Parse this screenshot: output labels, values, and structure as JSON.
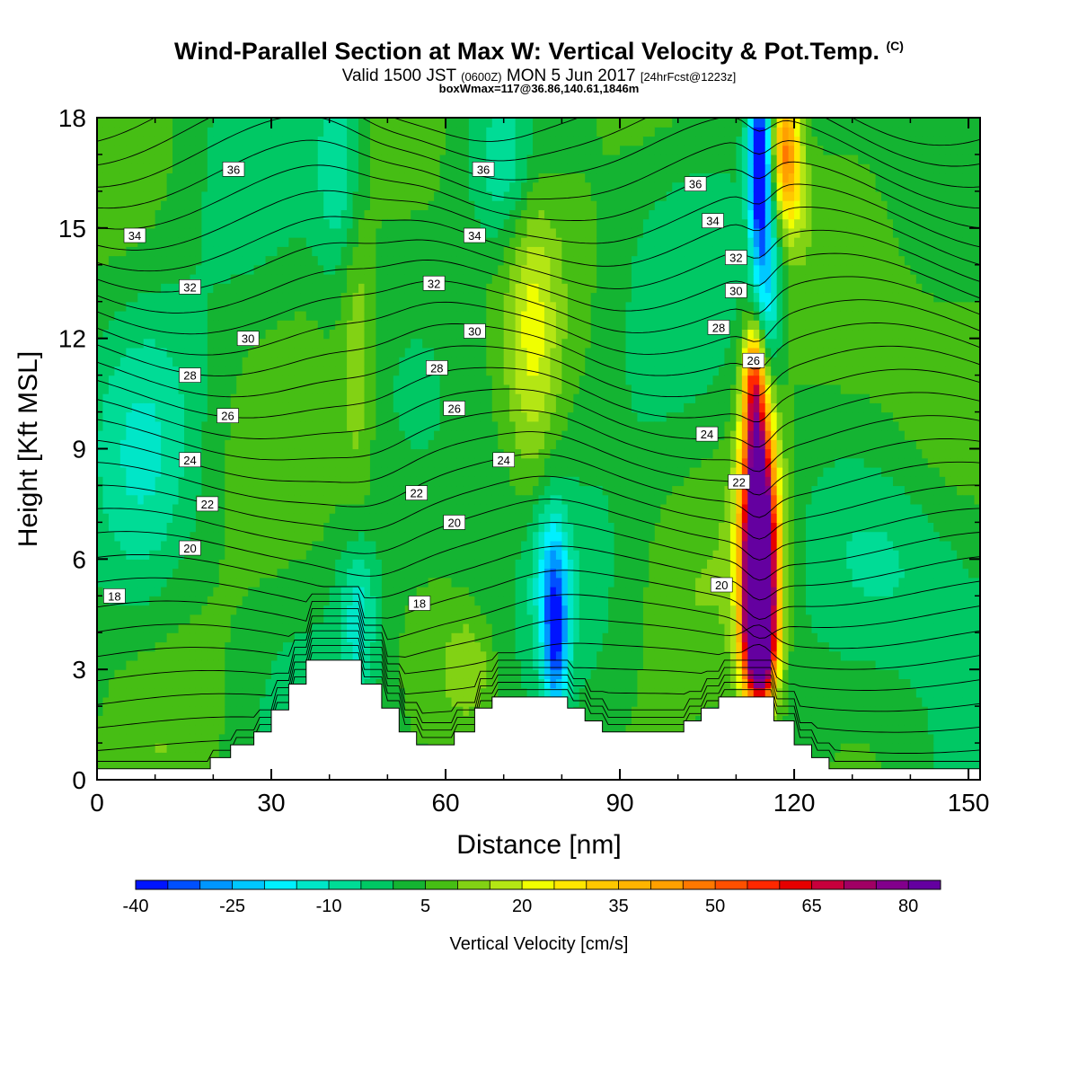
{
  "title": "Wind-Parallel Section at Max W: Vertical Velocity & Pot.Temp.",
  "title_mark": "(C)",
  "subtitle_pre": "Valid 1500 JST",
  "subtitle_utc": "(0600Z)",
  "subtitle_post": "MON 5 Jun 2017",
  "subtitle_fcst": "[24hrFcst@1223z]",
  "subtitle2": "boxWmax=117@36.86,140.61,1846m",
  "chart_data": {
    "type": "heatmap",
    "xlabel": "Distance [nm]",
    "ylabel": "Height [Kft MSL]",
    "xlim": [
      0,
      152
    ],
    "ylim": [
      0,
      18
    ],
    "x_ticks": [
      0,
      30,
      60,
      90,
      120,
      150
    ],
    "y_ticks": [
      0,
      3,
      6,
      9,
      12,
      15,
      18
    ],
    "colorbar": {
      "label": "Vertical Velocity [cm/s]",
      "levels": [
        -40,
        -35,
        -30,
        -25,
        -20,
        -15,
        -10,
        -5,
        0,
        5,
        10,
        15,
        20,
        25,
        30,
        35,
        40,
        45,
        50,
        55,
        60,
        65,
        70,
        75,
        80,
        85
      ],
      "tick_labels": [
        -40,
        -25,
        -10,
        5,
        20,
        35,
        50,
        65,
        80
      ],
      "colors": [
        "#0014ff",
        "#0050ff",
        "#0096ff",
        "#00c8ff",
        "#00f0ff",
        "#00e6c8",
        "#00dc96",
        "#00c864",
        "#14b432",
        "#46be14",
        "#82d214",
        "#b4e614",
        "#f0ff00",
        "#ffe600",
        "#ffc800",
        "#ffb400",
        "#ffa000",
        "#ff7800",
        "#ff5000",
        "#ff2800",
        "#e60000",
        "#c8003c",
        "#a00064",
        "#82008c",
        "#6400a0"
      ]
    },
    "terrain": [
      [
        0,
        0.3
      ],
      [
        19.5,
        0.3
      ],
      [
        19.5,
        0.6
      ],
      [
        23,
        0.6
      ],
      [
        23,
        0.95
      ],
      [
        27,
        0.95
      ],
      [
        27,
        1.3
      ],
      [
        30,
        1.3
      ],
      [
        30,
        1.9
      ],
      [
        33,
        1.9
      ],
      [
        33,
        2.6
      ],
      [
        36,
        2.6
      ],
      [
        36,
        3.25
      ],
      [
        45.5,
        3.25
      ],
      [
        45.5,
        2.6
      ],
      [
        49,
        2.6
      ],
      [
        49,
        1.95
      ],
      [
        52,
        1.95
      ],
      [
        52,
        1.3
      ],
      [
        55,
        1.3
      ],
      [
        55,
        0.95
      ],
      [
        61.5,
        0.95
      ],
      [
        61.5,
        1.3
      ],
      [
        65,
        1.3
      ],
      [
        65,
        1.95
      ],
      [
        68,
        1.95
      ],
      [
        68,
        2.25
      ],
      [
        81,
        2.25
      ],
      [
        81,
        1.95
      ],
      [
        84,
        1.95
      ],
      [
        84,
        1.6
      ],
      [
        87,
        1.6
      ],
      [
        87,
        1.3
      ],
      [
        101,
        1.3
      ],
      [
        101,
        1.6
      ],
      [
        104,
        1.6
      ],
      [
        104,
        1.95
      ],
      [
        107,
        1.95
      ],
      [
        107,
        2.25
      ],
      [
        116.5,
        2.25
      ],
      [
        116.5,
        1.6
      ],
      [
        120,
        1.6
      ],
      [
        120,
        0.95
      ],
      [
        123,
        0.95
      ],
      [
        123,
        0.6
      ],
      [
        126,
        0.6
      ],
      [
        126,
        0.3
      ],
      [
        152,
        0.3
      ]
    ],
    "vertical_velocity_features": [
      {
        "x": 114,
        "y": 5.0,
        "sx": 1.8,
        "sy": 1.8,
        "w": 95
      },
      {
        "x": 114,
        "y": 6.8,
        "sx": 2.3,
        "sy": 2.2,
        "w": 60
      },
      {
        "x": 113.5,
        "y": 9.5,
        "sx": 1.6,
        "sy": 1.6,
        "w": 40
      },
      {
        "x": 113,
        "y": 11.0,
        "sx": 1.2,
        "sy": 1.0,
        "w": 25
      },
      {
        "x": 114,
        "y": 3.5,
        "sx": 2.0,
        "sy": 1.0,
        "w": 40
      },
      {
        "x": 114,
        "y": 16.8,
        "sx": 1.3,
        "sy": 1.8,
        "w": -45
      },
      {
        "x": 115.5,
        "y": 13.5,
        "sx": 1.7,
        "sy": 2.0,
        "w": -22
      },
      {
        "x": 118.5,
        "y": 17.3,
        "sx": 1.6,
        "sy": 1.2,
        "w": 35
      },
      {
        "x": 119.5,
        "y": 16.0,
        "sx": 2.0,
        "sy": 1.2,
        "w": 15
      },
      {
        "x": 79,
        "y": 3.8,
        "sx": 1.5,
        "sy": 1.6,
        "w": -30
      },
      {
        "x": 78,
        "y": 5.6,
        "sx": 2.2,
        "sy": 1.6,
        "w": -15
      },
      {
        "x": 45,
        "y": 4.5,
        "sx": 2.5,
        "sy": 1.5,
        "w": -15
      },
      {
        "x": 42,
        "y": 16.5,
        "sx": 3.0,
        "sy": 2.0,
        "w": -12
      },
      {
        "x": 70,
        "y": 16.5,
        "sx": 4.0,
        "sy": 1.5,
        "w": -12
      },
      {
        "x": 64,
        "y": 3.0,
        "sx": 3.0,
        "sy": 1.0,
        "w": 10
      },
      {
        "x": 75,
        "y": 12.0,
        "sx": 3.0,
        "sy": 3.0,
        "w": 14
      },
      {
        "x": 45,
        "y": 12.0,
        "sx": 2.0,
        "sy": 3.0,
        "w": 10
      },
      {
        "x": 8,
        "y": 9.0,
        "sx": 6.0,
        "sy": 3.0,
        "w": -8
      },
      {
        "x": 140,
        "y": 6.0,
        "sx": 10.0,
        "sy": 2.0,
        "w": -8
      },
      {
        "x": 140,
        "y": 13.0,
        "sx": 10.0,
        "sy": 4.0,
        "w": 3
      }
    ],
    "isentrope_labels": [
      {
        "x": 23.5,
        "y": 16.6,
        "v": "36"
      },
      {
        "x": 66.5,
        "y": 16.6,
        "v": "36"
      },
      {
        "x": 103,
        "y": 16.2,
        "v": "36"
      },
      {
        "x": 6.5,
        "y": 14.8,
        "v": "34"
      },
      {
        "x": 65,
        "y": 14.8,
        "v": "34"
      },
      {
        "x": 106,
        "y": 15.2,
        "v": "34"
      },
      {
        "x": 16,
        "y": 13.4,
        "v": "32"
      },
      {
        "x": 58,
        "y": 13.5,
        "v": "32"
      },
      {
        "x": 110,
        "y": 14.2,
        "v": "32"
      },
      {
        "x": 26,
        "y": 12.0,
        "v": "30"
      },
      {
        "x": 65,
        "y": 12.2,
        "v": "30"
      },
      {
        "x": 110,
        "y": 13.3,
        "v": "30"
      },
      {
        "x": 16,
        "y": 11.0,
        "v": "28"
      },
      {
        "x": 58.5,
        "y": 11.2,
        "v": "28"
      },
      {
        "x": 107,
        "y": 12.3,
        "v": "28"
      },
      {
        "x": 22.5,
        "y": 9.9,
        "v": "26"
      },
      {
        "x": 61.5,
        "y": 10.1,
        "v": "26"
      },
      {
        "x": 113,
        "y": 11.4,
        "v": "26"
      },
      {
        "x": 16,
        "y": 8.7,
        "v": "24"
      },
      {
        "x": 70,
        "y": 8.7,
        "v": "24"
      },
      {
        "x": 105,
        "y": 9.4,
        "v": "24"
      },
      {
        "x": 19,
        "y": 7.5,
        "v": "22"
      },
      {
        "x": 55,
        "y": 7.8,
        "v": "22"
      },
      {
        "x": 110.5,
        "y": 8.1,
        "v": "22"
      },
      {
        "x": 16,
        "y": 6.3,
        "v": "20"
      },
      {
        "x": 61.5,
        "y": 7.0,
        "v": "20"
      },
      {
        "x": 107.5,
        "y": 5.3,
        "v": "20"
      },
      {
        "x": 3,
        "y": 5.0,
        "v": "18"
      },
      {
        "x": 55.5,
        "y": 4.8,
        "v": "18"
      }
    ]
  }
}
